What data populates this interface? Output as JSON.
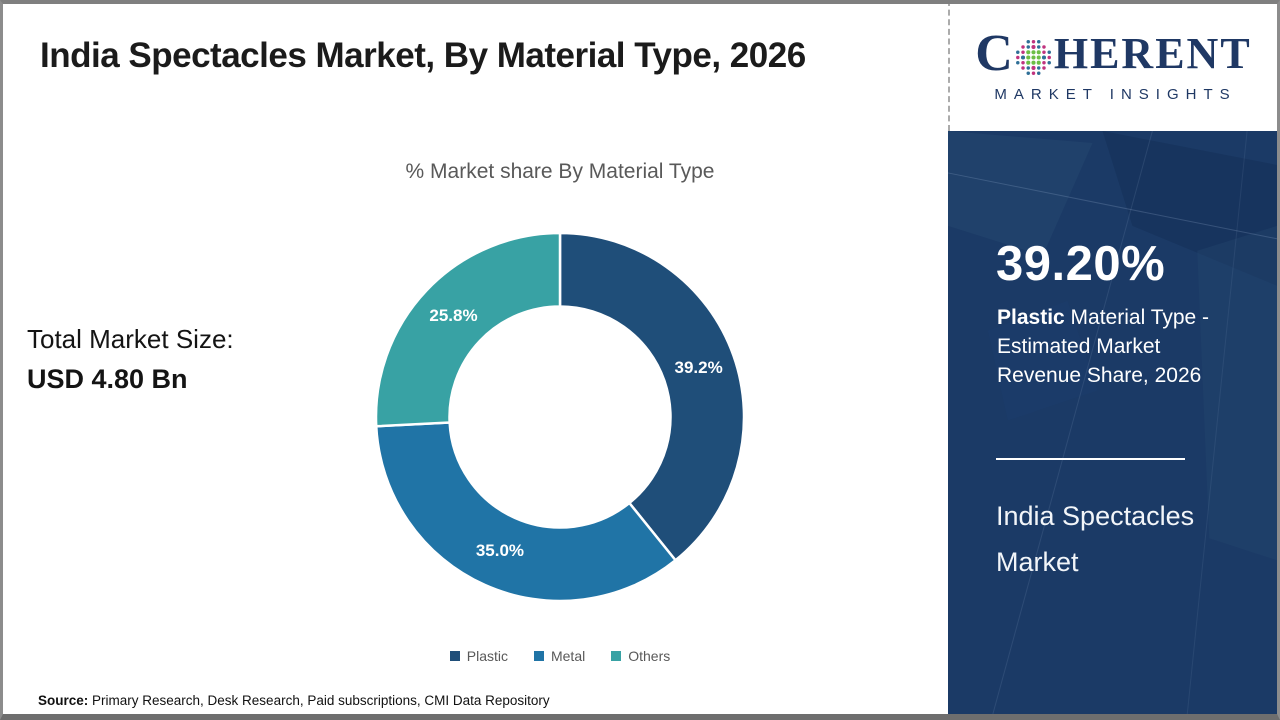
{
  "header": {
    "title": "India Spectacles Market, By Material Type, 2026"
  },
  "logo": {
    "word_start": "C",
    "word_end": "HERENT",
    "subtitle": "MARKET INSIGHTS",
    "colors": {
      "navy": "#1f3864",
      "green": "#6cbe45",
      "pink": "#c0337e",
      "blue": "#2f6f97"
    }
  },
  "left_panel": {
    "total_label": "Total Market Size:",
    "total_value": "USD 4.80 Bn"
  },
  "chart_data": {
    "type": "pie",
    "donut": true,
    "title": "% Market share By Material Type",
    "categories": [
      "Plastic",
      "Metal",
      "Others"
    ],
    "values": [
      39.2,
      35.0,
      25.8
    ],
    "labels": [
      "39.2%",
      "35.0%",
      "25.8%"
    ],
    "colors": [
      "#1f4e79",
      "#2074a6",
      "#38a2a4"
    ],
    "start_angle_deg": 0,
    "direction": "clockwise",
    "legend_position": "bottom",
    "label_color": "#ffffff"
  },
  "sidebar": {
    "highlight_value": "39.20%",
    "highlight_bold": "Plastic",
    "highlight_rest": " Material Type - Estimated Market Revenue Share, 2026",
    "market_name": "India Spectacles Market",
    "bg_color": "#1b3a66"
  },
  "footer": {
    "source_label": "Source:",
    "source_text": " Primary Research, Desk Research, Paid subscriptions, CMI Data Repository"
  }
}
